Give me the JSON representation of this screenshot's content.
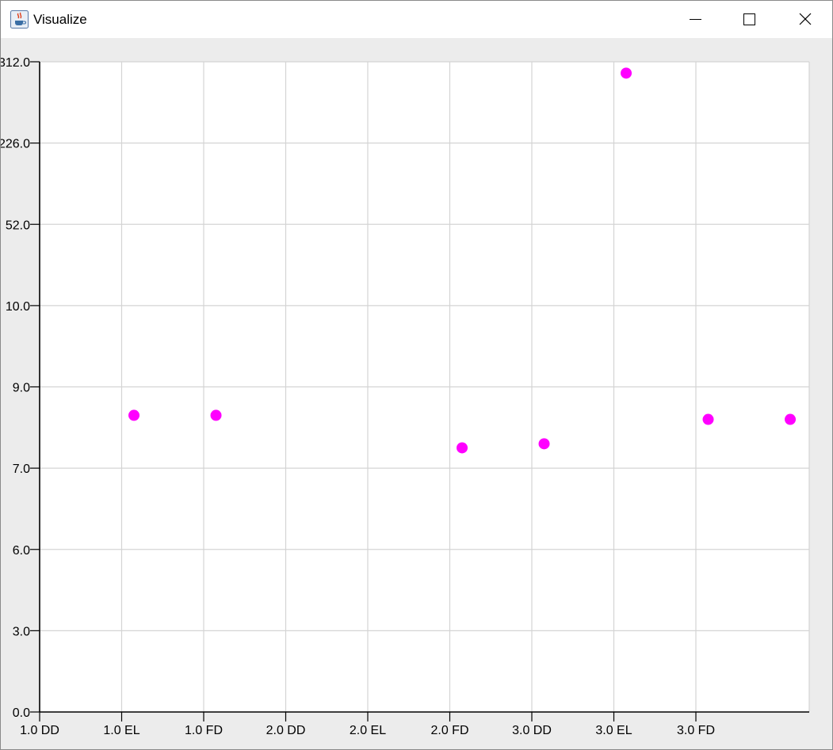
{
  "window": {
    "title": "Visualize",
    "app_icon": "java-cup-icon",
    "controls": [
      "minimize-icon",
      "maximize-icon",
      "close-icon"
    ]
  },
  "colors": {
    "point": "#ff00ff",
    "grid": "#d4d4d4",
    "axis": "#000000",
    "background": "#ffffff",
    "frame": "#ececec"
  },
  "chart_data": {
    "type": "scatter",
    "y_tick_labels": [
      "0.0",
      "3.0",
      "6.0",
      "7.0",
      "9.0",
      "10.0",
      "52.0",
      "226.0",
      "312.0"
    ],
    "x_tick_labels": [
      "1.0 DD",
      "1.0 EL",
      "1.0 FD",
      "2.0 DD",
      "2.0 EL",
      "2.0 FD",
      "3.0 DD",
      "3.0 EL",
      "3.0 FD"
    ],
    "grid": true,
    "points": [
      {
        "x": "1.0 EL",
        "y": 8.3
      },
      {
        "x": "1.0 FD",
        "y": 8.3
      },
      {
        "x": "2.0 FD",
        "y": 7.5
      },
      {
        "x": "3.0 DD",
        "y": 7.6
      },
      {
        "x": "3.0 EL",
        "y": 300
      },
      {
        "x": "3.0 FD",
        "y": 8.2
      },
      {
        "x": "",
        "y": 8.2
      }
    ]
  }
}
